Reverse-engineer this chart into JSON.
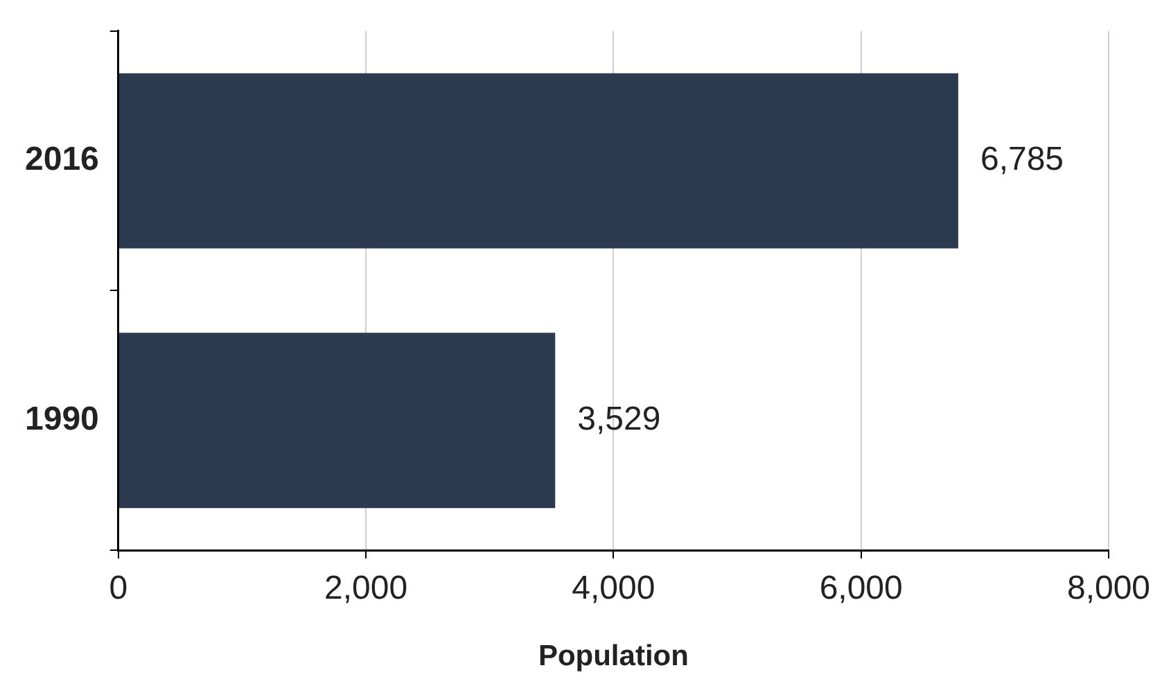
{
  "chart_data": {
    "type": "bar",
    "orientation": "horizontal",
    "xlabel": "Population",
    "categories": [
      "2016",
      "1990"
    ],
    "values": [
      6785,
      3529
    ],
    "color": "#2b3a4f",
    "value_labels": [
      "6,785",
      "3,529"
    ],
    "xlim": [
      0,
      8000
    ],
    "xticks": [
      {
        "value": 0,
        "label": "0"
      },
      {
        "value": 2000,
        "label": "2,000"
      },
      {
        "value": 4000,
        "label": "4,000"
      },
      {
        "value": 6000,
        "label": "6,000"
      },
      {
        "value": 8000,
        "label": "8,000"
      }
    ],
    "grid": "x"
  }
}
